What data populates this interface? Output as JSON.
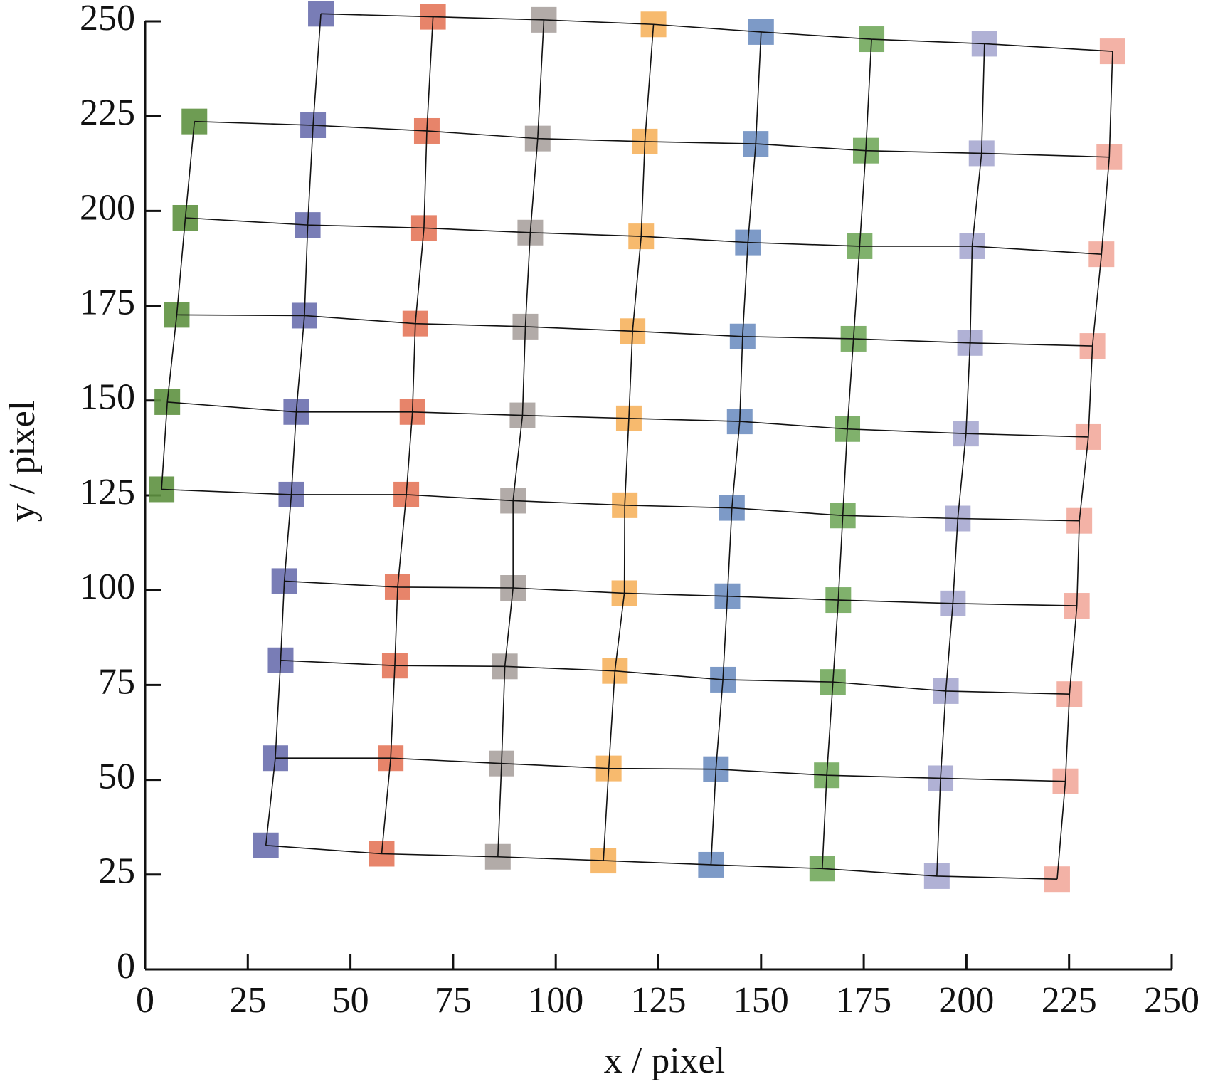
{
  "chart_data": {
    "type": "scatter",
    "xlabel": "x / pixel",
    "ylabel": "y / pixel",
    "xlim": [
      0,
      250
    ],
    "ylim": [
      0,
      250
    ],
    "xticks": [
      0,
      25,
      50,
      75,
      100,
      125,
      150,
      175,
      200,
      225,
      250
    ],
    "yticks": [
      0,
      25,
      50,
      75,
      100,
      125,
      150,
      175,
      200,
      225,
      250
    ],
    "series": [
      {
        "color": "#5e9140",
        "x": [
          null,
          12.0,
          9.8,
          7.7,
          5.4,
          4.0,
          null,
          null,
          null,
          null
        ],
        "values": [
          null,
          223.6,
          198.2,
          172.6,
          149.6,
          126.6,
          null,
          null,
          null,
          null
        ]
      },
      {
        "color": "#6a6fae",
        "x": [
          42.8,
          40.9,
          39.6,
          38.8,
          36.8,
          35.6,
          33.9,
          33.0,
          31.7,
          29.4
        ],
        "values": [
          252.0,
          222.6,
          196.3,
          172.4,
          147.0,
          125.2,
          102.4,
          81.5,
          55.7,
          32.7
        ]
      },
      {
        "color": "#e4775a",
        "x": [
          70.1,
          68.6,
          67.9,
          65.8,
          65.1,
          63.6,
          61.5,
          60.8,
          59.8,
          57.6
        ],
        "values": [
          251.2,
          221.1,
          195.5,
          170.3,
          147.0,
          125.2,
          100.8,
          80.1,
          55.7,
          30.5
        ]
      },
      {
        "color": "#aaa29e",
        "x": [
          97.1,
          95.6,
          93.8,
          92.6,
          91.9,
          89.6,
          89.6,
          87.6,
          86.8,
          85.9
        ],
        "values": [
          250.4,
          219.1,
          194.3,
          169.5,
          146.1,
          123.6,
          100.6,
          79.9,
          54.3,
          29.7
        ]
      },
      {
        "color": "#f6b25e",
        "x": [
          123.8,
          121.7,
          120.8,
          118.7,
          117.8,
          116.8,
          116.7,
          114.4,
          112.9,
          111.6
        ],
        "values": [
          249.2,
          218.3,
          193.3,
          168.3,
          145.3,
          122.4,
          99.2,
          78.7,
          53.0,
          28.7
        ]
      },
      {
        "color": "#6f8fc1",
        "x": [
          150.0,
          148.7,
          146.8,
          145.5,
          144.8,
          142.9,
          141.8,
          140.7,
          139.0,
          137.8
        ],
        "values": [
          247.2,
          217.7,
          191.7,
          166.9,
          144.5,
          121.7,
          98.4,
          76.4,
          52.8,
          27.6
        ]
      },
      {
        "color": "#72a85c",
        "x": [
          176.9,
          175.5,
          174.0,
          172.5,
          171.0,
          169.9,
          168.8,
          167.5,
          166.0,
          164.9
        ],
        "values": [
          245.3,
          215.9,
          190.7,
          166.3,
          142.5,
          119.7,
          97.4,
          75.8,
          51.2,
          26.6
        ]
      },
      {
        "color": "#a7a8d0",
        "x": [
          204.4,
          203.7,
          201.4,
          200.9,
          199.9,
          197.9,
          196.7,
          195.0,
          193.7,
          192.8
        ],
        "values": [
          244.1,
          215.2,
          190.7,
          165.2,
          141.3,
          118.9,
          96.5,
          73.4,
          50.4,
          24.6
        ]
      },
      {
        "color": "#f2aa9c",
        "x": [
          235.6,
          234.8,
          232.9,
          230.7,
          229.7,
          227.5,
          226.9,
          225.1,
          224.1,
          222.1
        ],
        "values": [
          242.1,
          214.2,
          188.6,
          164.4,
          140.4,
          118.3,
          95.9,
          72.6,
          49.6,
          23.8
        ]
      }
    ]
  }
}
